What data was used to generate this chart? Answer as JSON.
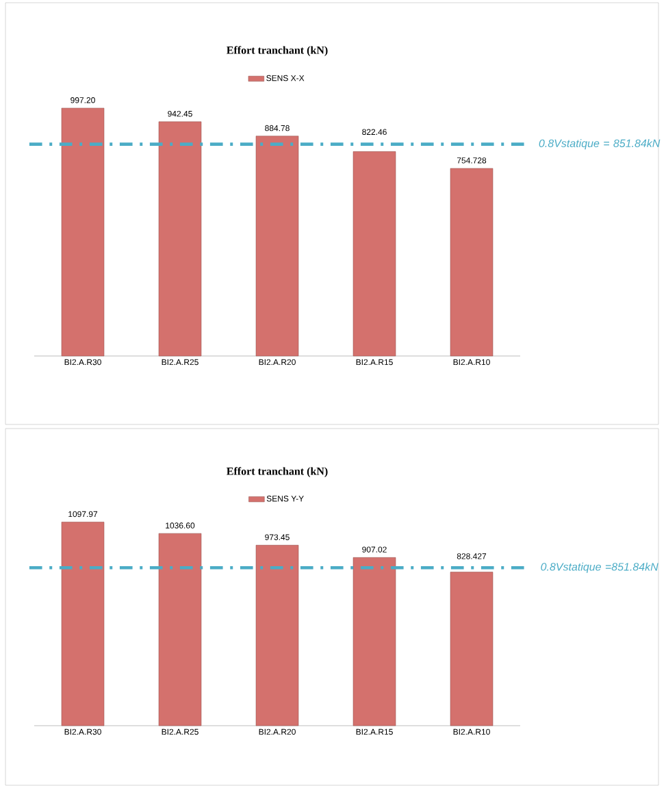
{
  "chart_data": [
    {
      "type": "bar",
      "title": "Effort tranchant (kN)",
      "categories": [
        "BI2.A.R30",
        "BI2.A.R25",
        "BI2.A.R20",
        "BI2.A.R15",
        "BI2.A.R10"
      ],
      "series": [
        {
          "name": "SENS X-X",
          "color": "#d4716d",
          "values": [
            997.2,
            942.45,
            884.78,
            822.46,
            754.728
          ],
          "value_labels": [
            "997.20",
            "942.45",
            "884.78",
            "822.46",
            "754.728"
          ]
        }
      ],
      "ref_lines": [
        {
          "axis": "y",
          "value": 851.84,
          "label": "0.8Vstatique = 851.84kN",
          "color": "#4bacc6"
        }
      ],
      "legend": "top"
    },
    {
      "type": "bar",
      "title": "Effort tranchant (kN)",
      "categories": [
        "BI2.A.R30",
        "BI2.A.R25",
        "BI2.A.R20",
        "BI2.A.R15",
        "BI2.A.R10"
      ],
      "series": [
        {
          "name": "SENS Y-Y",
          "color": "#d4716d",
          "values": [
            1097.97,
            1036.6,
            973.45,
            907.02,
            828.427
          ],
          "value_labels": [
            "1097.97",
            "1036.60",
            "973.45",
            "907.02",
            "828.427"
          ]
        }
      ],
      "ref_lines": [
        {
          "axis": "y",
          "value": 851.84,
          "label": "0.8Vstatique =851.84kN",
          "color": "#4bacc6"
        }
      ],
      "legend": "top"
    }
  ]
}
